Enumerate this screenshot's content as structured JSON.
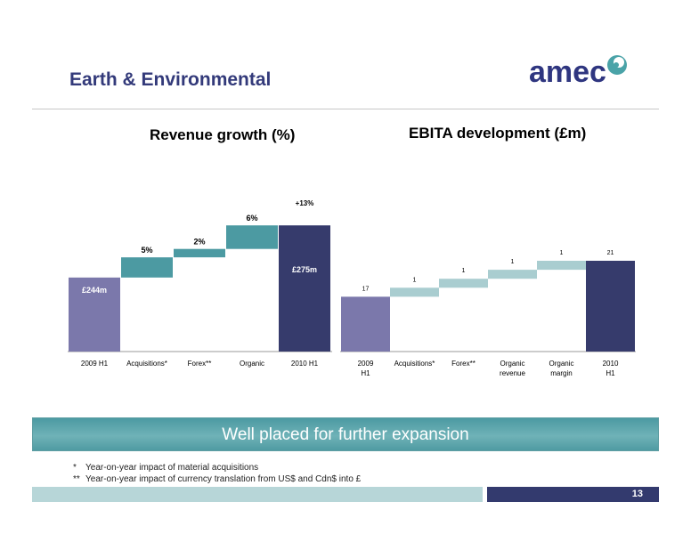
{
  "slide": {
    "title": "Earth & Environmental",
    "logo_text": "amec",
    "banner": "Well placed for further expansion",
    "footnotes": [
      {
        "marker": "*",
        "text": "Year-on-year impact  of material acquisitions"
      },
      {
        "marker": "**",
        "text": "Year-on-year impact of currency translation from US$ and Cdn$ into £"
      }
    ],
    "page_number": "13"
  },
  "colors": {
    "title": "#333a7a",
    "start_bar": "#7b78ab",
    "end_bar": "#363b6c",
    "revenue_step": "#4c9aa2",
    "ebita_step": "#a9cdd0",
    "banner": "#4c9aa2"
  },
  "chart_data": [
    {
      "type": "bar",
      "subtype": "waterfall",
      "title": "Revenue growth (%)",
      "categories": [
        "2009 H1",
        "Acquisitions*",
        "Forex**",
        "Organic",
        "2010 H1"
      ],
      "value_labels": [
        "£244m",
        "5%",
        "2%",
        "6%",
        "£275m"
      ],
      "values_gbp_m": [
        244,
        12,
        5,
        14,
        275
      ],
      "annotation": "+13%",
      "grid": false,
      "legend": "none"
    },
    {
      "type": "bar",
      "subtype": "waterfall",
      "title": "EBITA development (£m)",
      "categories": [
        "2009 H1",
        "Acquisitions*",
        "Forex**",
        "Organic revenue",
        "Organic margin",
        "2010 H1"
      ],
      "values": [
        17,
        1,
        1,
        1,
        1,
        21
      ],
      "value_labels": [
        "17",
        "1",
        "1",
        "1",
        "1",
        "21"
      ],
      "grid": false,
      "legend": "none"
    }
  ]
}
